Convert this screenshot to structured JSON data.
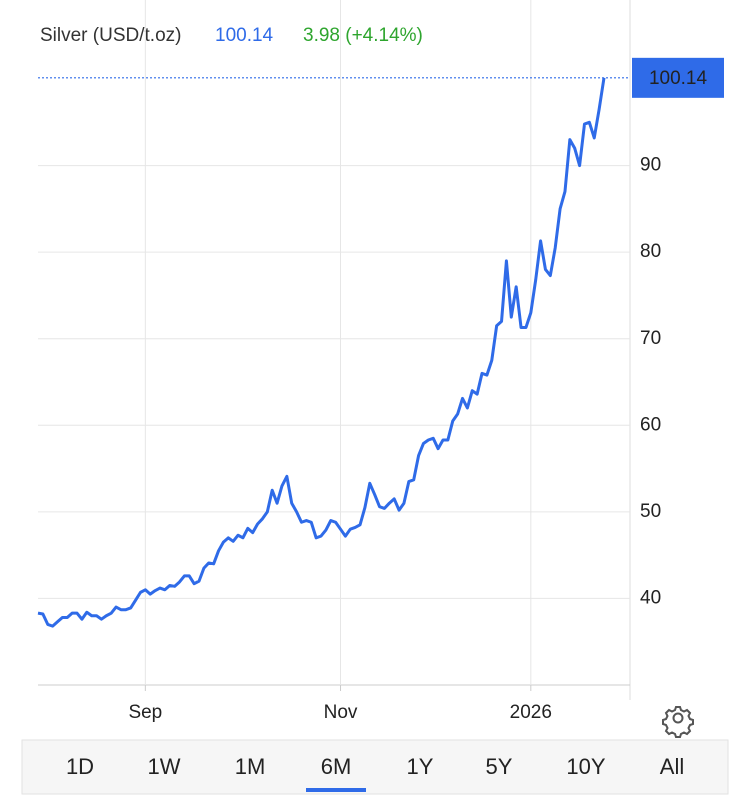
{
  "header": {
    "name": "Silver (USD/t.oz)",
    "price": 100.14,
    "change": "3.98 (+4.14%)"
  },
  "chart_data": {
    "type": "line",
    "color": "#2f6be8",
    "values": [
      38.3,
      38.2,
      37.0,
      36.8,
      37.3,
      37.8,
      37.8,
      38.3,
      38.3,
      37.6,
      38.4,
      38.0,
      38.0,
      37.6,
      38.0,
      38.3,
      39.0,
      38.7,
      38.7,
      38.9,
      39.8,
      40.7,
      41.0,
      40.5,
      40.9,
      41.2,
      41.0,
      41.5,
      41.4,
      41.9,
      42.6,
      42.6,
      41.7,
      42.0,
      43.5,
      44.1,
      44.0,
      45.5,
      46.5,
      47.0,
      46.6,
      47.3,
      47.0,
      48.1,
      47.6,
      48.6,
      49.2,
      50.0,
      52.5,
      51.0,
      53.0,
      54.1,
      51.0,
      50.0,
      48.8,
      49.0,
      48.8,
      47.0,
      47.2,
      47.9,
      49.0,
      48.8,
      48.0,
      47.2,
      48.0,
      48.2,
      48.5,
      50.5,
      53.3,
      52.0,
      50.6,
      50.4,
      51.0,
      51.5,
      50.2,
      51.0,
      53.5,
      53.7,
      56.5,
      57.9,
      58.3,
      58.5,
      57.3,
      58.3,
      58.3,
      60.5,
      61.3,
      63.1,
      62.0,
      64.0,
      63.6,
      66.0,
      65.8,
      67.5,
      71.5,
      72.0,
      79.0,
      72.5,
      76.0,
      71.3,
      71.3,
      73.0,
      76.8,
      81.3,
      78.0,
      77.3,
      80.5,
      85.0,
      87.0,
      93.0,
      92.0,
      90.0,
      94.8,
      95.0,
      93.2,
      96.5,
      100.14
    ],
    "ylim": [
      30,
      102.2
    ],
    "yticks": [
      40,
      50,
      60,
      70,
      80,
      90
    ],
    "xticks": [
      {
        "value": 22,
        "label": "Sep"
      },
      {
        "value": 62,
        "label": "Nov"
      },
      {
        "value": 101,
        "label": "2026"
      }
    ],
    "grid": true
  },
  "tabs": [
    "1D",
    "1W",
    "1M",
    "6M",
    "1Y",
    "5Y",
    "10Y",
    "All"
  ],
  "selected_tab": 3
}
